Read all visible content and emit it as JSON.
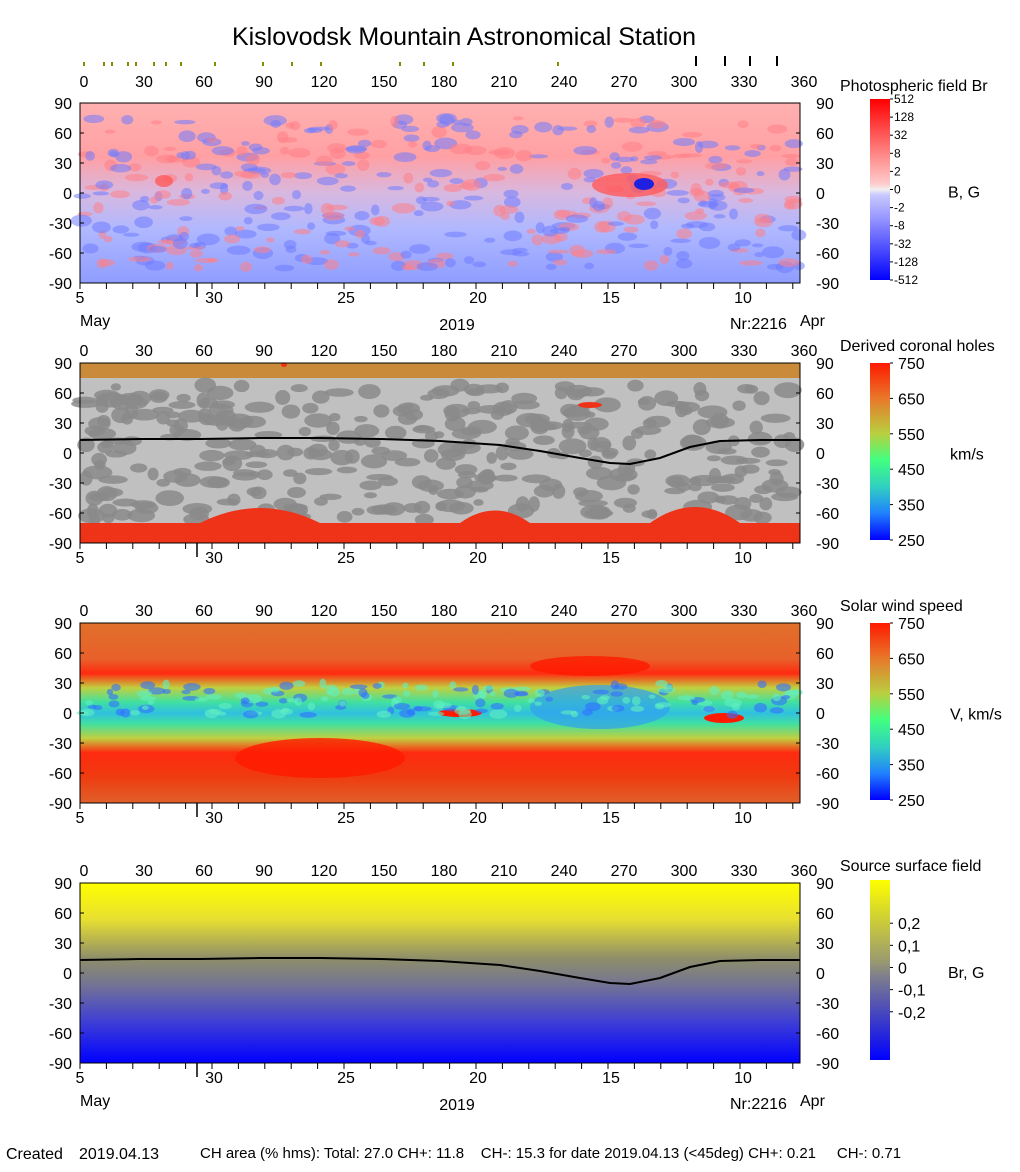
{
  "title": "Kislovodsk Mountain Astronomical Station",
  "lon_ticks": [
    "0",
    "30",
    "60",
    "90",
    "120",
    "150",
    "180",
    "210",
    "240",
    "270",
    "300",
    "330",
    "360"
  ],
  "lat_ticks": [
    "90",
    "60",
    "30",
    "0",
    "-30",
    "-60",
    "-90"
  ],
  "date_ticks": [
    "5",
    "30",
    "25",
    "20",
    "15",
    "10"
  ],
  "date_values": [
    5,
    30,
    25,
    20,
    15,
    10
  ],
  "month_left": "May",
  "month_right": "Apr",
  "year": "2019",
  "rotation": "Nr:2216",
  "footer": {
    "created_label": "Created",
    "created_date": "2019.04.13",
    "stats": "CH area (% hms): Total: 27.0 CH+: 11.8    CH-: 15.3 for date 2019.04.13 (<45deg) CH+: 0.21     CH-: 0.71"
  },
  "colors": {
    "br_pos": "#ff2a2a",
    "br_neg": "#2a3cff",
    "speed_low": "#1a1aff",
    "speed_high": "#ff1a00",
    "source_pos": "#ffff00",
    "source_neg": "#0000ff"
  },
  "chart_data": [
    {
      "type": "heatmap",
      "panel": "photospheric_field",
      "title": "Photospheric field Br",
      "unit_label": "B, G",
      "x_range": [
        0,
        360
      ],
      "y_range": [
        -90,
        90
      ],
      "colorbar_ticks": [
        "512",
        "128",
        "32",
        "8",
        "2",
        "0",
        "-2",
        "-8",
        "-32",
        "-128",
        "-512"
      ],
      "features": [
        {
          "description": "strong bipolar active region",
          "lon": 275,
          "lat": 8
        },
        {
          "description": "small positive patch",
          "lon": 42,
          "lat": 12
        }
      ]
    },
    {
      "type": "heatmap",
      "panel": "coronal_holes",
      "title": "Derived coronal holes",
      "unit_label": "km/s",
      "x_range": [
        0,
        360
      ],
      "y_range": [
        -90,
        90
      ],
      "colorbar_ticks": [
        "750",
        "650",
        "550",
        "450",
        "350",
        "250"
      ],
      "neutral_line": [
        [
          0,
          13
        ],
        [
          30,
          14
        ],
        [
          60,
          14
        ],
        [
          90,
          15
        ],
        [
          120,
          15
        ],
        [
          150,
          14
        ],
        [
          180,
          12
        ],
        [
          210,
          8
        ],
        [
          230,
          2
        ],
        [
          250,
          -5
        ],
        [
          265,
          -10
        ],
        [
          275,
          -11
        ],
        [
          290,
          -5
        ],
        [
          305,
          6
        ],
        [
          320,
          12
        ],
        [
          340,
          13
        ],
        [
          360,
          13
        ]
      ]
    },
    {
      "type": "heatmap",
      "panel": "solar_wind_speed",
      "title": "Solar wind speed",
      "unit_label": "V, km/s",
      "x_range": [
        0,
        360
      ],
      "y_range": [
        -90,
        90
      ],
      "colorbar_ticks": [
        "750",
        "650",
        "550",
        "450",
        "350",
        "250"
      ]
    },
    {
      "type": "heatmap",
      "panel": "source_surface_field",
      "title": "Source surface field",
      "unit_label": "Br, G",
      "x_range": [
        0,
        360
      ],
      "y_range": [
        -90,
        90
      ],
      "colorbar_ticks": [
        "0,2",
        "0,1",
        "0",
        "-0,1",
        "-0,2"
      ],
      "neutral_line": [
        [
          0,
          13
        ],
        [
          30,
          14
        ],
        [
          60,
          14
        ],
        [
          90,
          15
        ],
        [
          120,
          15
        ],
        [
          150,
          14
        ],
        [
          180,
          12
        ],
        [
          210,
          8
        ],
        [
          230,
          2
        ],
        [
          250,
          -5
        ],
        [
          265,
          -10
        ],
        [
          275,
          -11
        ],
        [
          290,
          -5
        ],
        [
          305,
          6
        ],
        [
          320,
          12
        ],
        [
          340,
          13
        ],
        [
          360,
          13
        ]
      ]
    }
  ]
}
